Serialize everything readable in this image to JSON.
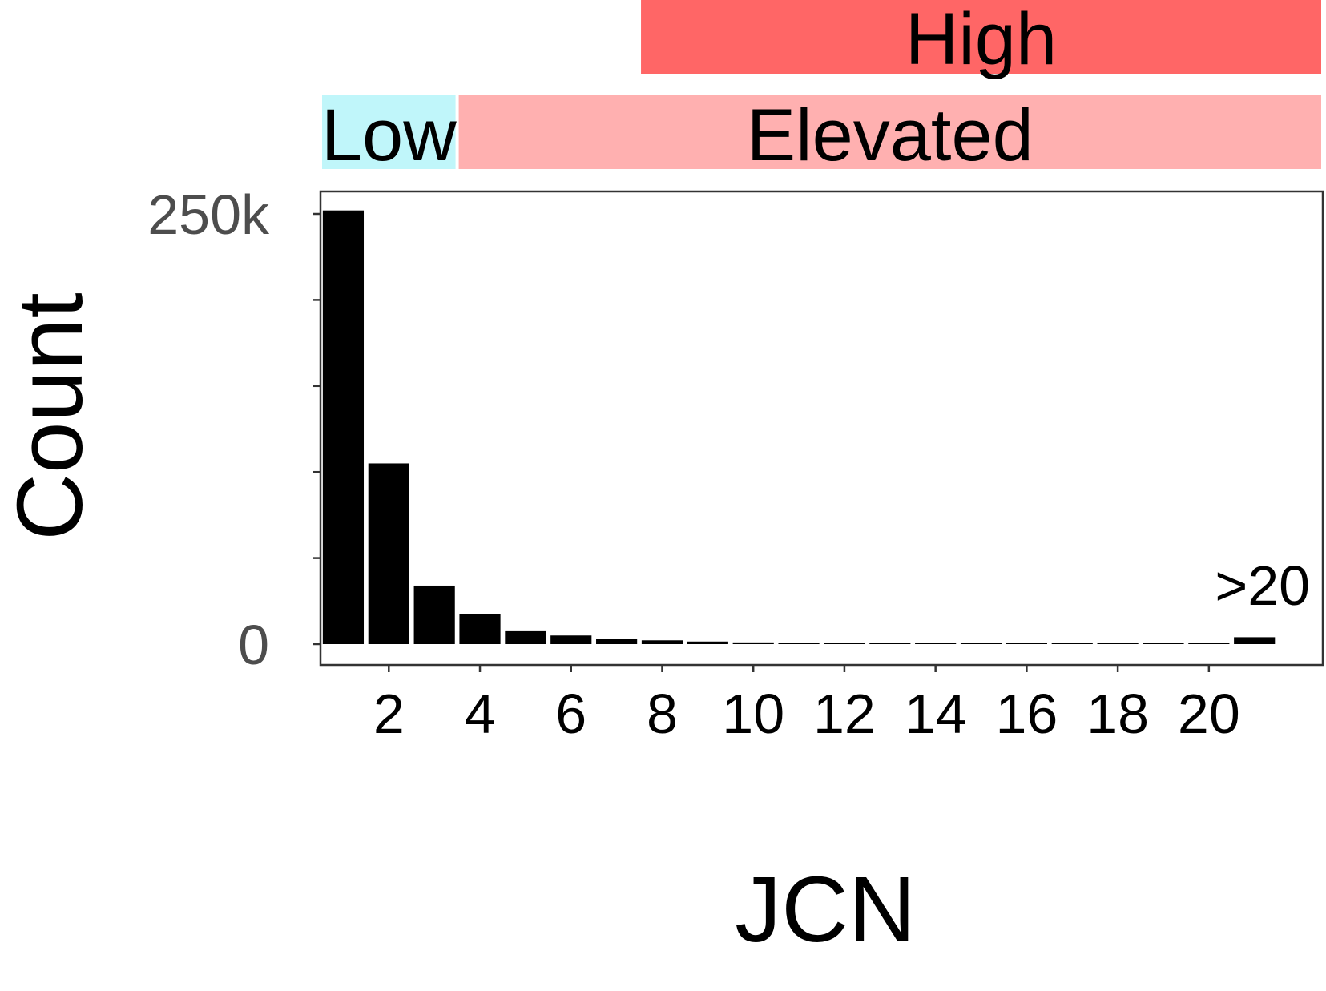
{
  "chart_data": {
    "type": "bar",
    "xlabel": "JCN",
    "ylabel": "Count",
    "x": [
      1,
      2,
      3,
      4,
      5,
      6,
      7,
      8,
      9,
      10,
      11,
      12,
      13,
      14,
      15,
      16,
      17,
      18,
      19,
      20,
      21
    ],
    "values": [
      252000,
      105000,
      34000,
      17500,
      7500,
      5000,
      3000,
      2200,
      1500,
      1000,
      800,
      600,
      500,
      400,
      300,
      250,
      200,
      150,
      120,
      100,
      4000
    ],
    "overflow_label": ">20",
    "ylim": [
      0,
      262000
    ],
    "xlim": [
      0.5,
      22.5
    ],
    "x_ticks": [
      2,
      4,
      6,
      8,
      10,
      12,
      14,
      16,
      18,
      20
    ],
    "y_tick_values": [
      0,
      50000,
      100000,
      150000,
      200000,
      250000
    ],
    "y_tick_labels": [
      {
        "value": 0,
        "label": "0"
      },
      {
        "value": 250000,
        "label": "250k"
      }
    ],
    "bar_color": "#000000",
    "grid": false,
    "bands": [
      {
        "label": "High",
        "from": 7.5,
        "to": 22.5,
        "row": 1,
        "color": "#ff6666"
      },
      {
        "label": "Low",
        "from": 0.5,
        "to": 3.5,
        "row": 2,
        "color": "#c0f6fa"
      },
      {
        "label": "Elevated",
        "from": 3.5,
        "to": 22.5,
        "row": 2,
        "color": "#ffb0b0"
      }
    ]
  }
}
